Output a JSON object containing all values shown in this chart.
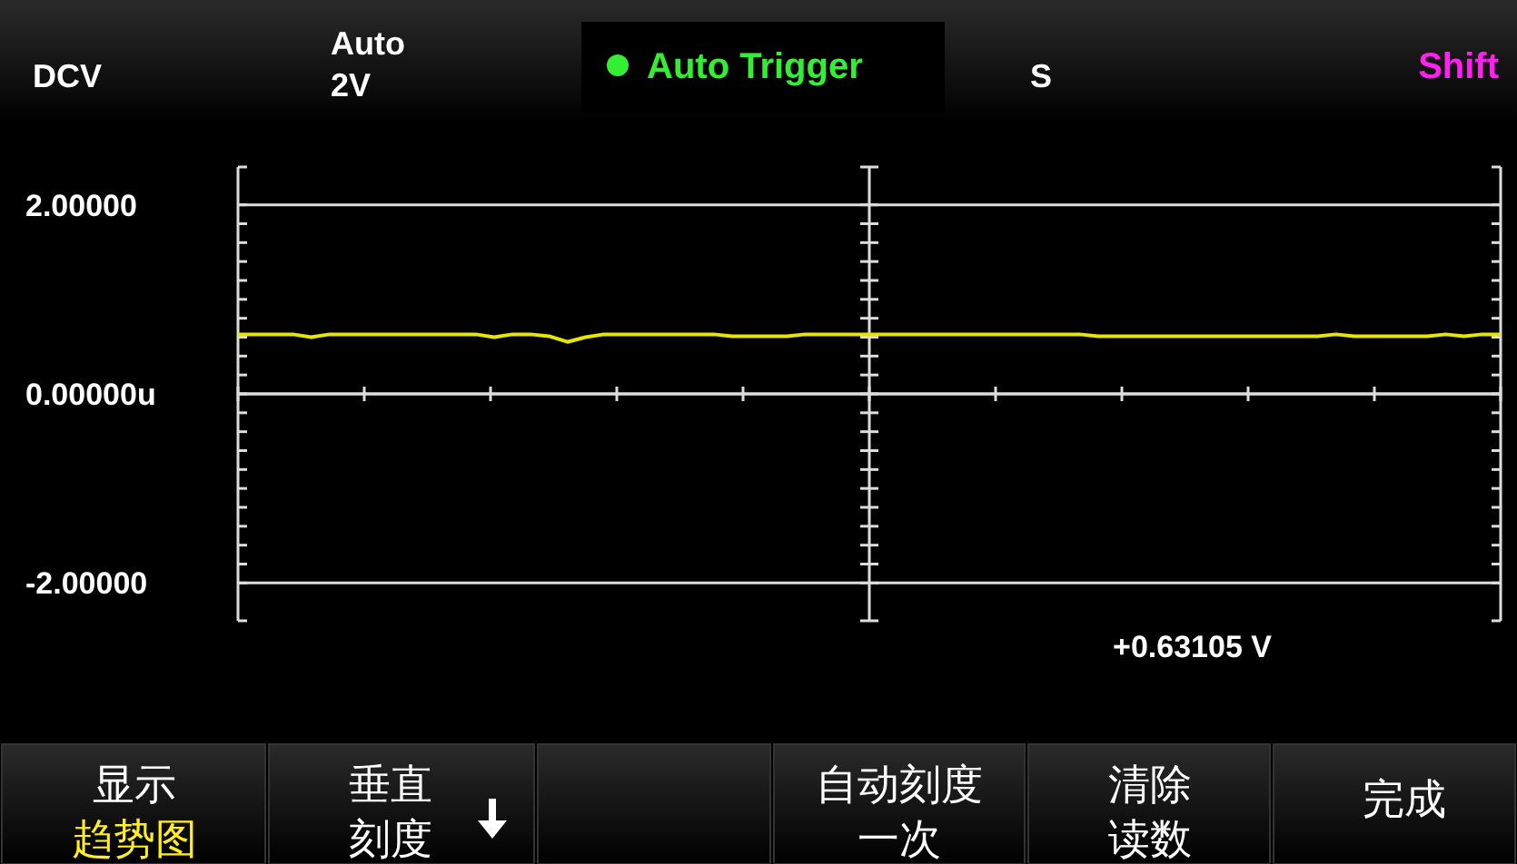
{
  "chart_data": {
    "type": "line",
    "categories": [
      null,
      null,
      null,
      null,
      null,
      null,
      null,
      null,
      null,
      null,
      null,
      null,
      null,
      null,
      null,
      null,
      null,
      null,
      null,
      null,
      null,
      null,
      null,
      null,
      null,
      null,
      null,
      null,
      null,
      null,
      null,
      null,
      null,
      null,
      null,
      null,
      null,
      null,
      null,
      null,
      null,
      null,
      null,
      null,
      null,
      null,
      null,
      null,
      null,
      null,
      null,
      null,
      null,
      null,
      null,
      null,
      null,
      null,
      null,
      null,
      null,
      null,
      null,
      null,
      null,
      null,
      null,
      null,
      null,
      null
    ],
    "series": [
      {
        "color": "#e6e600",
        "values": [
          0.63,
          0.63,
          0.63,
          0.63,
          0.6,
          0.63,
          0.63,
          0.63,
          0.63,
          0.63,
          0.63,
          0.63,
          0.63,
          0.63,
          0.6,
          0.63,
          0.63,
          0.61,
          0.55,
          0.6,
          0.63,
          0.63,
          0.63,
          0.63,
          0.63,
          0.63,
          0.63,
          0.61,
          0.61,
          0.61,
          0.61,
          0.63,
          0.63,
          0.63,
          0.63,
          0.63,
          0.63,
          0.63,
          0.63,
          0.63,
          0.63,
          0.63,
          0.63,
          0.63,
          0.63,
          0.63,
          0.63,
          0.61,
          0.61,
          0.61,
          0.61,
          0.61,
          0.61,
          0.61,
          0.61,
          0.61,
          0.61,
          0.61,
          0.61,
          0.61,
          0.63,
          0.61,
          0.61,
          0.61,
          0.61,
          0.61,
          0.63,
          0.61,
          0.63,
          0.63
        ]
      }
    ],
    "ylim": [
      -2.4,
      2.4
    ],
    "yticks": [
      {
        "value": -2,
        "label": "-2.00000"
      },
      {
        "value": -1.8,
        "label": null
      },
      {
        "value": -1.6,
        "label": null
      },
      {
        "value": -1.4,
        "label": null
      },
      {
        "value": -1.2,
        "label": null
      },
      {
        "value": -1,
        "label": null
      },
      {
        "value": -0.8,
        "label": null
      },
      {
        "value": -0.6,
        "label": null
      },
      {
        "value": -0.4,
        "label": null
      },
      {
        "value": -0.2,
        "label": null
      },
      {
        "value": 0,
        "label": "0.00000u"
      },
      {
        "value": 0.2,
        "label": null
      },
      {
        "value": 0.4,
        "label": null
      },
      {
        "value": 0.6,
        "label": null
      },
      {
        "value": 0.8,
        "label": null
      },
      {
        "value": 1,
        "label": null
      },
      {
        "value": 1.2,
        "label": null
      },
      {
        "value": 1.4,
        "label": null
      },
      {
        "value": 1.6,
        "label": null
      },
      {
        "value": 1.8,
        "label": null
      },
      {
        "value": 2,
        "label": "2.00000"
      }
    ],
    "grid": "y",
    "marker": "none",
    "line_style": "solid",
    "annotations": [
      "DCV",
      "Auto",
      "2V",
      "Auto Trigger",
      "S",
      "Shift",
      "+0.63105 V",
      "显示",
      "趋势图",
      "垂直",
      "刻度",
      "自动刻度",
      "一次",
      "清除",
      "读数",
      "完成"
    ]
  }
}
